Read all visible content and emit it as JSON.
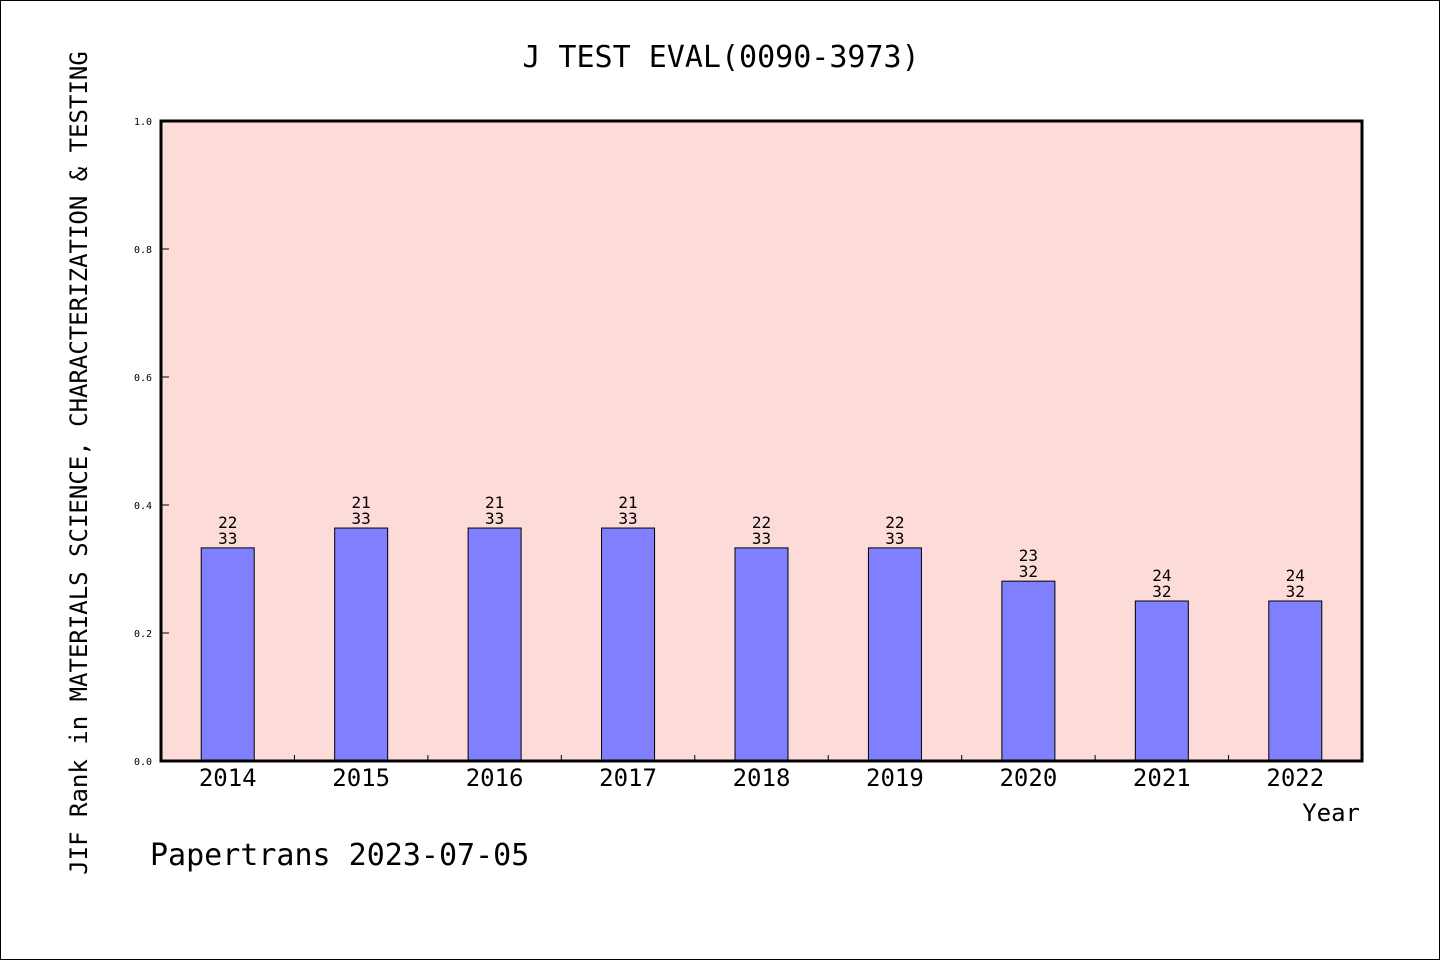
{
  "chart_data": {
    "type": "bar",
    "title": "J TEST EVAL(0090-3973)",
    "xlabel": "Year",
    "ylabel": "JIF Rank in MATERIALS SCIENCE, CHARACTERIZATION & TESTING",
    "ylim": [
      0,
      1.0
    ],
    "yticks": [
      "0.0",
      "0.2",
      "0.4",
      "0.6",
      "0.8",
      "1.0"
    ],
    "categories": [
      "2014",
      "2015",
      "2016",
      "2017",
      "2018",
      "2019",
      "2020",
      "2021",
      "2022"
    ],
    "values": [
      0.333,
      0.364,
      0.364,
      0.364,
      0.333,
      0.333,
      0.281,
      0.25,
      0.25
    ],
    "labels": [
      [
        "22",
        "33"
      ],
      [
        "21",
        "33"
      ],
      [
        "21",
        "33"
      ],
      [
        "21",
        "33"
      ],
      [
        "22",
        "33"
      ],
      [
        "22",
        "33"
      ],
      [
        "23",
        "32"
      ],
      [
        "24",
        "32"
      ],
      [
        "24",
        "32"
      ]
    ],
    "colors": {
      "plot_background": "#fddbd8",
      "bar": "#8080ff"
    },
    "grid": false,
    "legend": "none"
  },
  "footer": "Papertrans 2023-07-05"
}
